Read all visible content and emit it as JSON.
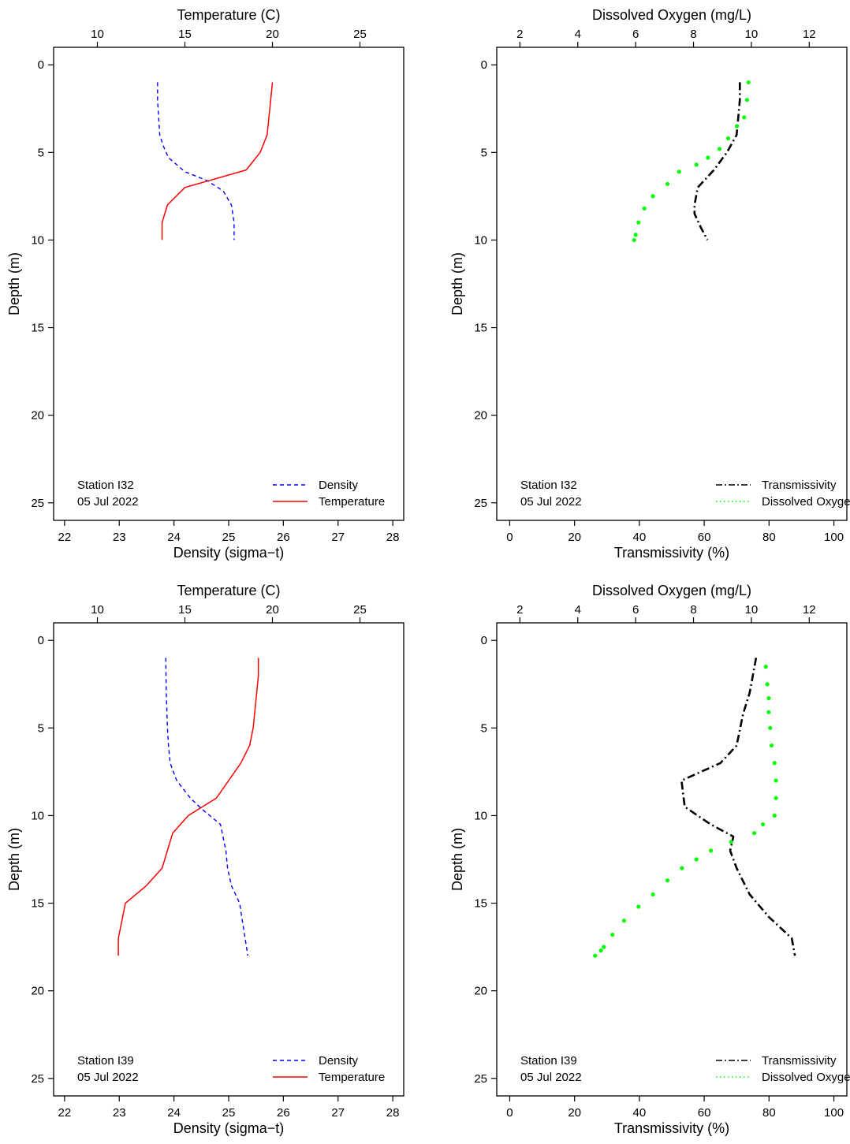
{
  "chart_data": [
    {
      "type": "line",
      "panel": "Station I32 density and temperature",
      "station_label": "Station I32",
      "date_label": "05 Jul 2022",
      "xlabel": "Density (sigma−t)",
      "x2label": "Temperature (C)",
      "ylabel": "Depth (m)",
      "xlim": [
        21.8,
        28.2
      ],
      "x2lim": [
        7.5,
        27.5
      ],
      "ylim": [
        26,
        -1
      ],
      "y_reversed": true,
      "xticks": [
        "22",
        "23",
        "24",
        "25",
        "26",
        "27",
        "28"
      ],
      "x2ticks": [
        "10",
        "15",
        "20",
        "25"
      ],
      "yticks": [
        "0",
        "5",
        "10",
        "15",
        "20",
        "25"
      ],
      "legend_position": "bottom-right",
      "series": [
        {
          "name": "Density",
          "axis": "bottom",
          "style": "dashed",
          "color": "#0000ff",
          "x": [
            23.7,
            23.7,
            23.72,
            23.74,
            23.8,
            23.9,
            24.05,
            24.2,
            24.6,
            24.9,
            25.05,
            25.1,
            25.1
          ],
          "y": [
            1,
            2,
            3,
            4,
            4.6,
            5.3,
            5.7,
            6.1,
            6.6,
            7.2,
            8,
            9,
            10
          ]
        },
        {
          "name": "Temperature",
          "axis": "top",
          "style": "solid",
          "color": "#ff0000",
          "x": [
            20.0,
            19.9,
            19.7,
            19.3,
            18.5,
            15.0,
            14.0,
            13.7,
            13.7
          ],
          "y": [
            1,
            2,
            4,
            5,
            6,
            7,
            8,
            9,
            10
          ]
        }
      ]
    },
    {
      "type": "line",
      "panel": "Station I32 transmissivity and dissolved oxygen",
      "station_label": "Station I32",
      "date_label": "05 Jul 2022",
      "xlabel": "Transmissivity (%)",
      "x2label": "Dissolved Oxygen (mg/L)",
      "ylabel": "Depth (m)",
      "xlim": [
        -4,
        104
      ],
      "x2lim": [
        1.2,
        13.3
      ],
      "ylim": [
        26,
        -1
      ],
      "y_reversed": true,
      "xticks": [
        "0",
        "20",
        "40",
        "60",
        "80",
        "100"
      ],
      "x2ticks": [
        "2",
        "4",
        "6",
        "8",
        "10",
        "12"
      ],
      "yticks": [
        "0",
        "5",
        "10",
        "15",
        "20",
        "25"
      ],
      "legend_position": "bottom-right",
      "series": [
        {
          "name": "Transmissivity",
          "axis": "bottom",
          "style": "dashdot",
          "color": "#000000",
          "x": [
            71,
            71,
            70.5,
            70,
            67,
            63,
            58,
            57,
            57,
            59,
            61
          ],
          "y": [
            1,
            2,
            3,
            4,
            5,
            6,
            7,
            8,
            8.5,
            9.3,
            10
          ]
        },
        {
          "name": "Dissolved Oxygen",
          "axis": "top",
          "style": "dotted",
          "color": "#00ff00",
          "x": [
            9.9,
            9.85,
            9.75,
            9.5,
            9.2,
            8.9,
            8.5,
            8.1,
            7.5,
            7.1,
            6.6,
            6.3,
            6.1,
            6.0,
            5.95
          ],
          "y": [
            1,
            2,
            3,
            3.5,
            4.2,
            4.8,
            5.3,
            5.7,
            6.1,
            6.8,
            7.5,
            8.2,
            9,
            9.7,
            10
          ]
        }
      ]
    },
    {
      "type": "line",
      "panel": "Station I39 density and temperature",
      "station_label": "Station I39",
      "date_label": "05 Jul 2022",
      "xlabel": "Density (sigma−t)",
      "x2label": "Temperature (C)",
      "ylabel": "Depth (m)",
      "xlim": [
        21.8,
        28.2
      ],
      "x2lim": [
        7.5,
        27.5
      ],
      "ylim": [
        26,
        -1
      ],
      "y_reversed": true,
      "xticks": [
        "22",
        "23",
        "24",
        "25",
        "26",
        "27",
        "28"
      ],
      "x2ticks": [
        "10",
        "15",
        "20",
        "25"
      ],
      "yticks": [
        "0",
        "5",
        "10",
        "15",
        "20",
        "25"
      ],
      "legend_position": "bottom-right",
      "series": [
        {
          "name": "Density",
          "axis": "bottom",
          "style": "dashed",
          "color": "#0000ff",
          "x": [
            23.85,
            23.86,
            23.88,
            23.9,
            23.93,
            24.05,
            24.3,
            24.5,
            24.85,
            24.95,
            24.98,
            25.05,
            25.2,
            25.35
          ],
          "y": [
            1,
            3,
            5,
            6,
            7,
            8,
            9,
            9.6,
            10.5,
            12,
            13,
            14,
            15,
            18
          ]
        },
        {
          "name": "Temperature",
          "axis": "top",
          "style": "solid",
          "color": "#ff0000",
          "x": [
            19.2,
            19.2,
            19.1,
            19.0,
            18.9,
            18.7,
            18.2,
            17.5,
            16.8,
            15.2,
            14.3,
            14.0,
            13.7,
            12.8,
            11.6,
            11.4,
            11.2,
            11.2
          ],
          "y": [
            1,
            2,
            3,
            4,
            5,
            6,
            7,
            8,
            9,
            10,
            11,
            12,
            13,
            14,
            15,
            16,
            17,
            18
          ]
        }
      ]
    },
    {
      "type": "line",
      "panel": "Station I39 transmissivity and dissolved oxygen",
      "station_label": "Station I39",
      "date_label": "05 Jul 2022",
      "xlabel": "Transmissivity (%)",
      "x2label": "Dissolved Oxygen (mg/L)",
      "ylabel": "Depth (m)",
      "xlim": [
        -4,
        104
      ],
      "x2lim": [
        1.2,
        13.3
      ],
      "ylim": [
        26,
        -1
      ],
      "y_reversed": true,
      "xticks": [
        "0",
        "20",
        "40",
        "60",
        "80",
        "100"
      ],
      "x2ticks": [
        "2",
        "4",
        "6",
        "8",
        "10",
        "12"
      ],
      "yticks": [
        "0",
        "5",
        "10",
        "15",
        "20",
        "25"
      ],
      "legend_position": "bottom-right",
      "series": [
        {
          "name": "Transmissivity",
          "axis": "bottom",
          "style": "dashdot",
          "color": "#000000",
          "x": [
            76,
            75,
            74,
            72,
            70,
            65,
            53,
            54,
            62,
            69,
            68,
            70,
            74,
            80,
            87,
            88
          ],
          "y": [
            1,
            2,
            3,
            4.2,
            6,
            7,
            8,
            9.5,
            10.5,
            11.2,
            12,
            13,
            14.5,
            15.8,
            17,
            18
          ]
        },
        {
          "name": "Dissolved Oxygen",
          "axis": "top",
          "style": "dotted",
          "color": "#00ff00",
          "x": [
            10.5,
            10.55,
            10.6,
            10.6,
            10.65,
            10.7,
            10.8,
            10.85,
            10.85,
            10.8,
            10.4,
            10.1,
            9.3,
            8.6,
            8.1,
            7.6,
            7.1,
            6.6,
            6.1,
            5.6,
            5.2,
            4.9,
            4.8,
            4.6
          ],
          "y": [
            1.5,
            2.5,
            3.3,
            4.1,
            5,
            6,
            7,
            8,
            9,
            10,
            10.5,
            11,
            11.5,
            12,
            12.5,
            13,
            13.7,
            14.5,
            15.2,
            16,
            16.8,
            17.5,
            17.7,
            18
          ]
        }
      ]
    }
  ]
}
